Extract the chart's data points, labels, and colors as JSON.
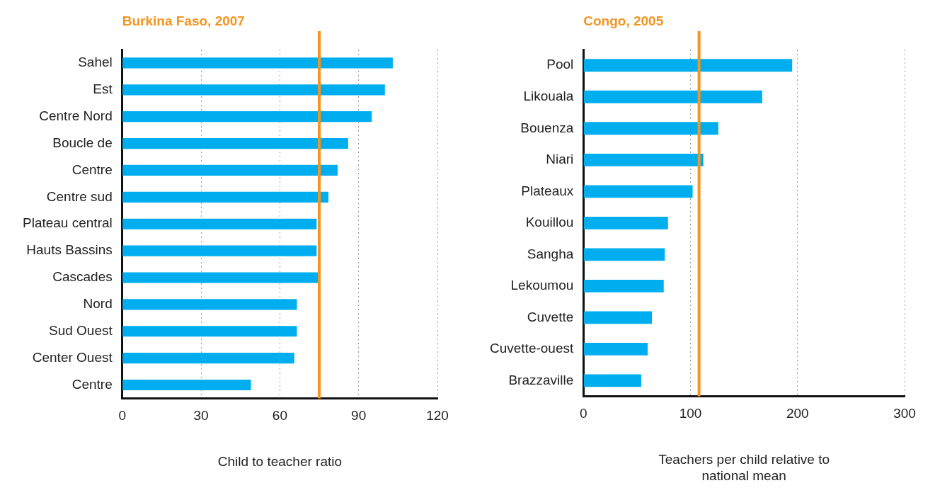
{
  "chart_data": [
    {
      "type": "bar",
      "orientation": "horizontal",
      "title": "Burkina Faso, 2007",
      "xlabel": "Child to teacher ratio",
      "categories": [
        "Sahel",
        "Est",
        "Centre Nord",
        "Boucle de",
        "Centre",
        "Centre sud",
        "Plateau central",
        "Hauts Bassins",
        "Cascades",
        "Nord",
        "Sud Ouest",
        "Center Ouest",
        "Centre"
      ],
      "values": [
        103,
        100,
        95,
        86,
        82,
        78.5,
        74,
        74,
        74.5,
        66.5,
        66.5,
        65.5,
        49
      ],
      "color": "#00aeef",
      "xlim": [
        0,
        120
      ],
      "xticks": [
        0,
        30,
        60,
        90,
        120
      ],
      "grid": "x",
      "legend": false,
      "ref_lines": [
        {
          "axis": "x",
          "value": 75,
          "color": "#f7941d"
        }
      ]
    },
    {
      "type": "bar",
      "orientation": "horizontal",
      "title": "Congo, 2005",
      "xlabel": "Teachers per child relative to national mean",
      "categories": [
        "Pool",
        "Likouala",
        "Bouenza",
        "Niari",
        "Plateaux",
        "Kouillou",
        "Sangha",
        "Lekoumou",
        "Cuvette",
        "Cuvette-ouest",
        "Brazzaville"
      ],
      "values": [
        195,
        167,
        126,
        112,
        102,
        79,
        76,
        75,
        64,
        60,
        54
      ],
      "color": "#00aeef",
      "xlim": [
        0,
        300
      ],
      "xticks": [
        0,
        100,
        200,
        300
      ],
      "grid": "x",
      "legend": false,
      "ref_lines": [
        {
          "axis": "x",
          "value": 108,
          "color": "#f7941d"
        }
      ]
    }
  ]
}
